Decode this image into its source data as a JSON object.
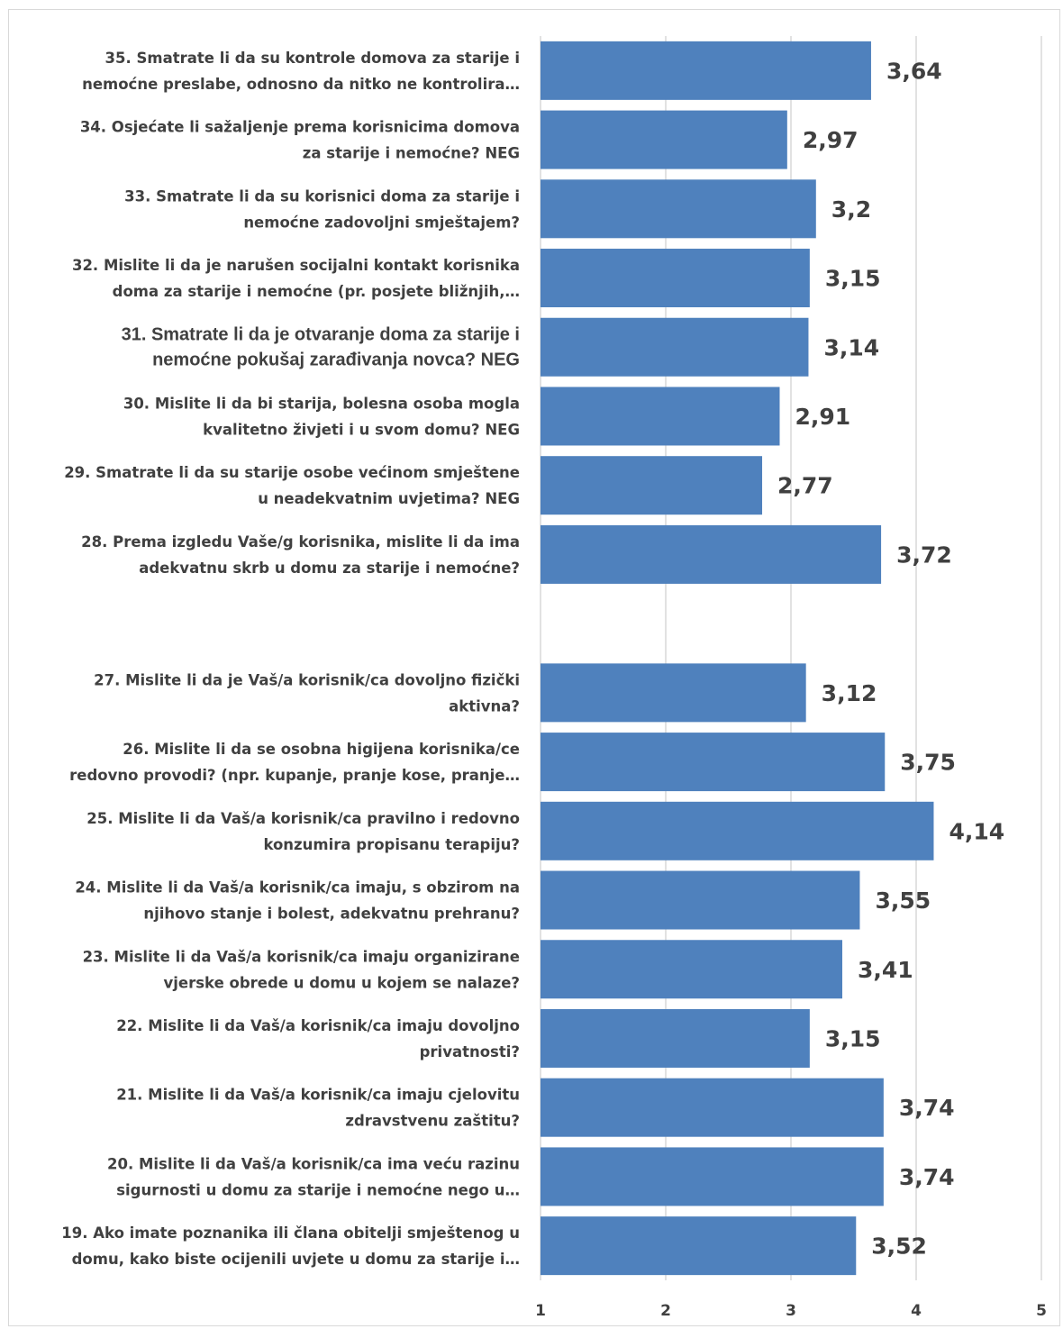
{
  "chart_data": {
    "type": "bar",
    "orientation": "horizontal",
    "xlim": [
      1,
      5
    ],
    "ticks": [
      1,
      2,
      3,
      4,
      5
    ],
    "grid": true,
    "color": "#4f81bd",
    "categories": [
      [
        "35.   Smatrate li da su kontrole domova za starije i",
        "nemoćne preslabe, odnosno da nitko ne kontrolira…"
      ],
      [
        "34.   Osjećate li sažaljenje prema korisnicima domova",
        "za starije i nemoćne? NEG"
      ],
      [
        "33.   Smatrate li da su korisnici doma za starije i",
        "nemoćne zadovoljni smještajem?"
      ],
      [
        "32.   Mislite li da je narušen socijalni kontakt korisnika",
        "doma za starije i nemoćne (pr. posjete bližnjih,…"
      ],
      [
        "31.   Smatrate li da je otvaranje doma za starije i",
        "nemoćne pokušaj zarađivanja novca? NEG"
      ],
      [
        "30.   Mislite li da bi starija, bolesna osoba mogla",
        "kvalitetno živjeti i u svom domu? NEG"
      ],
      [
        "29.   Smatrate li da su starije osobe većinom smještene",
        "u neadekvatnim uvjetima? NEG"
      ],
      [
        "28.   Prema izgledu Vaše/g korisnika, mislite li da ima",
        "adekvatnu skrb u domu za starije i nemoćne?"
      ],
      [
        "",
        ""
      ],
      [
        "27.   Mislite li da je Vaš/a korisnik/ca dovoljno fizički",
        "aktivna?"
      ],
      [
        "26.   Mislite li da se osobna higijena korisnika/ce",
        "redovno provodi? (npr. kupanje, pranje kose, pranje…"
      ],
      [
        "25.   Mislite li da Vaš/a korisnik/ca pravilno i redovno",
        "konzumira propisanu terapiju?"
      ],
      [
        "24.   Mislite li da Vaš/a korisnik/ca imaju, s obzirom na",
        "njihovo stanje i bolest, adekvatnu prehranu?"
      ],
      [
        "23.   Mislite li da Vaš/a korisnik/ca imaju organizirane",
        "vjerske obrede u domu u kojem se nalaze?"
      ],
      [
        "22.   Mislite li da Vaš/a korisnik/ca imaju dovoljno",
        "privatnosti?"
      ],
      [
        "21.   Mislite li da Vaš/a korisnik/ca imaju cjelovitu",
        "zdravstvenu zaštitu?"
      ],
      [
        "20.   Mislite li da Vaš/a korisnik/ca ima veću razinu",
        "sigurnosti u domu za starije i nemoćne nego u…"
      ],
      [
        "19.   Ako imate poznanika ili člana obitelji smještenog u",
        "domu, kako biste ocijenili uvjete u domu za starije i…"
      ]
    ],
    "values": [
      3.64,
      2.97,
      3.2,
      3.15,
      3.14,
      2.91,
      2.77,
      3.72,
      null,
      3.12,
      3.75,
      4.14,
      3.55,
      3.41,
      3.15,
      3.74,
      3.74,
      3.52
    ],
    "data_labels": [
      "3,64",
      "2,97",
      "3,2",
      "3,15",
      "3,14",
      "2,91",
      "2,77",
      "3,72",
      "",
      "3,12",
      "3,75",
      "4,14",
      "3,55",
      "3,41",
      "3,15",
      "3,74",
      "3,74",
      "3,52"
    ]
  }
}
